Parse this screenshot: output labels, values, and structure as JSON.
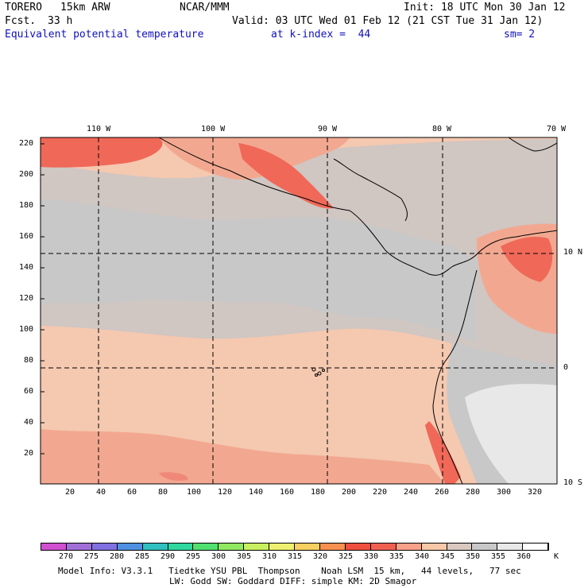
{
  "header": {
    "model": "TORERO",
    "resolution": "15km ARW",
    "org": "NCAR/MMM",
    "init": "Init: 18 UTC Mon 30 Jan 12",
    "fcst_label": "Fcst.",
    "fcst_value": "33 h",
    "valid": "Valid: 03 UTC Wed 01 Feb 12 (21 CST Tue 31 Jan 12)",
    "field": "Equivalent potential temperature",
    "level": "at k-index =  44",
    "smooth": "sm= 2"
  },
  "map": {
    "top_lon_labels": [
      "110 W",
      "100 W",
      "90 W",
      "80 W",
      "70 W"
    ],
    "right_lat_labels": [
      "10 N",
      "0",
      "10 S"
    ],
    "y_ticks": [
      "220",
      "200",
      "180",
      "160",
      "140",
      "120",
      "100",
      "80",
      "60",
      "40",
      "20"
    ],
    "x_ticks": [
      "20",
      "40",
      "60",
      "80",
      "100",
      "120",
      "140",
      "160",
      "180",
      "200",
      "220",
      "240",
      "260",
      "280",
      "300",
      "320"
    ]
  },
  "colorbar": {
    "labels": [
      "270",
      "275",
      "280",
      "285",
      "290",
      "295",
      "300",
      "305",
      "310",
      "315",
      "320",
      "325",
      "330",
      "335",
      "340",
      "345",
      "350",
      "355",
      "360"
    ],
    "unit": "K",
    "colors": [
      "#d050d0",
      "#a070d8",
      "#8070e0",
      "#5090e0",
      "#30c0c0",
      "#30d8a0",
      "#50e070",
      "#90e860",
      "#c8f060",
      "#f0f070",
      "#f8d060",
      "#f89050",
      "#f05040",
      "#f06050",
      "#f8a088",
      "#f8c8a8",
      "#d8c8c0",
      "#c8c8c8",
      "#e8e8e8",
      "#ffffff"
    ]
  },
  "footer": {
    "line1": "Model Info: V3.3.1   Tiedtke YSU PBL  Thompson    Noah LSM  15 km,   44 levels,   77 sec",
    "line2": "LW: Godd SW: Goddard DIFF: simple KM: 2D Smagor"
  }
}
